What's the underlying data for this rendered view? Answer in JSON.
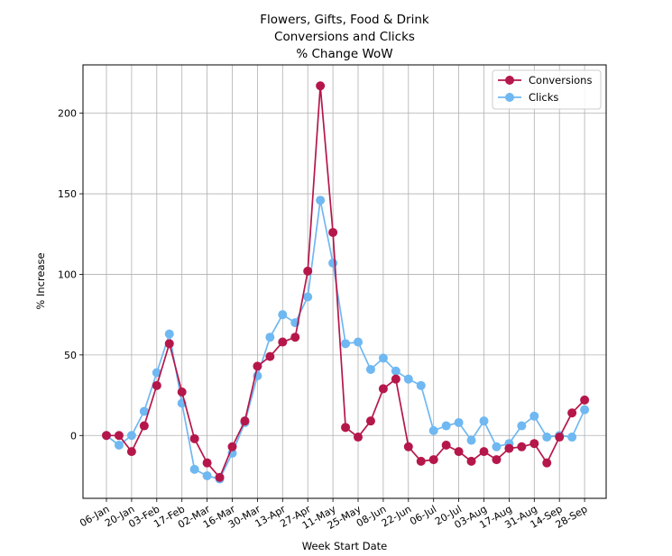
{
  "chart_data": {
    "type": "line",
    "title_lines": [
      "Flowers, Gifts, Food & Drink",
      "Conversions and Clicks",
      "% Change WoW"
    ],
    "xlabel": "Week Start Date",
    "ylabel": "% Increase",
    "ylim": [
      -39,
      230
    ],
    "yticks": [
      0,
      50,
      100,
      150,
      200
    ],
    "xtick_labels": [
      "06-Jan",
      "20-Jan",
      "03-Feb",
      "17-Feb",
      "02-Mar",
      "16-Mar",
      "30-Mar",
      "13-Apr",
      "27-Apr",
      "11-May",
      "25-May",
      "08-Jun",
      "22-Jun",
      "06-Jul",
      "20-Jul",
      "03-Aug",
      "17-Aug",
      "31-Aug",
      "14-Sep",
      "28-Sep"
    ],
    "x_weeks": [
      "06-Jan",
      "13-Jan",
      "20-Jan",
      "27-Jan",
      "03-Feb",
      "10-Feb",
      "17-Feb",
      "24-Feb",
      "02-Mar",
      "09-Mar",
      "16-Mar",
      "23-Mar",
      "30-Mar",
      "06-Apr",
      "13-Apr",
      "20-Apr",
      "27-Apr",
      "04-May",
      "11-May",
      "18-May",
      "25-May",
      "01-Jun",
      "08-Jun",
      "15-Jun",
      "22-Jun",
      "29-Jun",
      "06-Jul",
      "13-Jul",
      "20-Jul",
      "27-Jul",
      "03-Aug",
      "10-Aug",
      "17-Aug",
      "24-Aug",
      "31-Aug",
      "07-Sep",
      "14-Sep",
      "21-Sep",
      "28-Sep"
    ],
    "grid": true,
    "legend_position": "upper right",
    "series": [
      {
        "name": "Conversions",
        "color": "#b5174b",
        "values": [
          0,
          0,
          -10,
          6,
          31,
          57,
          27,
          -2,
          -17,
          -26,
          -7,
          9,
          43,
          49,
          58,
          61,
          102,
          217,
          126,
          5,
          -1,
          9,
          29,
          35,
          -7,
          -16,
          -15,
          -6,
          -10,
          -16,
          -10,
          -15,
          -8,
          -7,
          -5,
          -17,
          -1,
          14,
          22
        ]
      },
      {
        "name": "Clicks",
        "color": "#6fb8f2",
        "values": [
          0,
          -6,
          0,
          15,
          39,
          63,
          20,
          -21,
          -25,
          -27,
          -11,
          8,
          37,
          61,
          75,
          70,
          86,
          146,
          107,
          57,
          58,
          41,
          48,
          40,
          35,
          31,
          3,
          6,
          8,
          -3,
          9,
          -7,
          -5,
          6,
          12,
          -1,
          0,
          -1,
          16
        ]
      }
    ]
  }
}
